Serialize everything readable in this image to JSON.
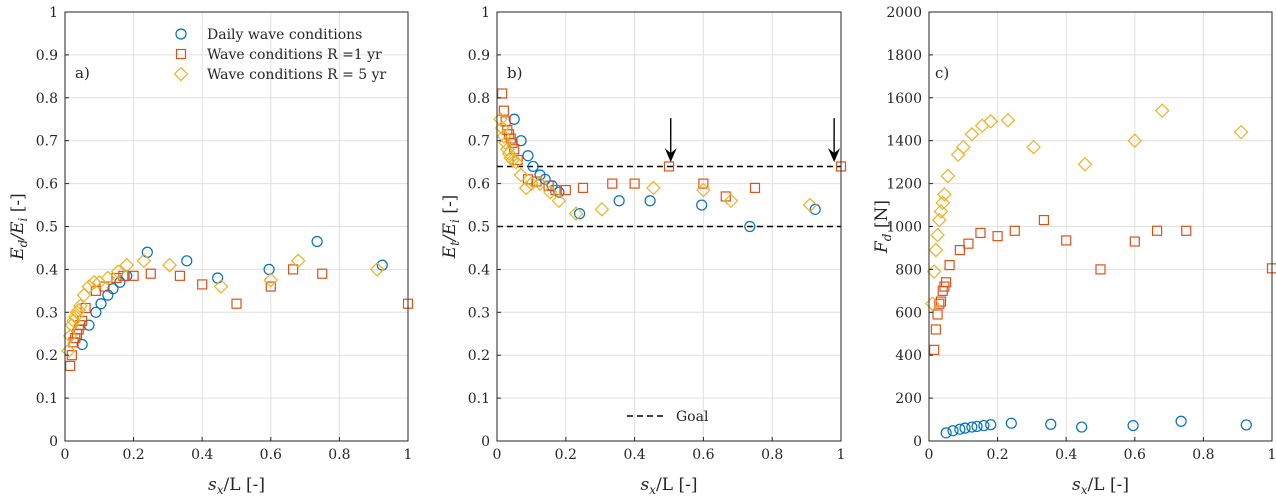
{
  "colors": {
    "daily": "#0072BD",
    "r1": "#D95319",
    "r5": "#EDB120",
    "axis": "#262626",
    "grid": "#e0e0e0"
  },
  "legend": {
    "daily": "Daily wave conditions",
    "r1": "Wave conditions R =1 yr",
    "r5": "Wave conditions R = 5 yr",
    "goal": "Goal"
  },
  "chart_data": [
    {
      "type": "scatter",
      "panel_label": "a)",
      "xlabel_main": "s",
      "xlabel_sub": "x",
      "xlabel_rest": "/L [-]",
      "ylabel_main": "E",
      "ylabel_sub": "d",
      "ylabel_mid": "/E",
      "ylabel_sub2": "i",
      "ylabel_rest": " [-]",
      "xlim": [
        0,
        1
      ],
      "ylim": [
        0,
        1
      ],
      "xticks": [
        "0",
        "0.2",
        "0.4",
        "0.6",
        "0.8",
        "1"
      ],
      "yticks": [
        "0",
        "0.1",
        "0.2",
        "0.3",
        "0.4",
        "0.5",
        "0.6",
        "0.7",
        "0.8",
        "0.9",
        "1"
      ],
      "grid": true,
      "legend_position": "top",
      "series": [
        {
          "key": "daily",
          "marker": "circle",
          "x": [
            0.05,
            0.07,
            0.09,
            0.105,
            0.125,
            0.14,
            0.16,
            0.18,
            0.24,
            0.355,
            0.445,
            0.595,
            0.735,
            0.925
          ],
          "y": [
            0.225,
            0.27,
            0.3,
            0.32,
            0.34,
            0.355,
            0.37,
            0.385,
            0.44,
            0.42,
            0.38,
            0.4,
            0.465,
            0.41
          ]
        },
        {
          "key": "r1",
          "marker": "square",
          "x": [
            0.015,
            0.02,
            0.025,
            0.03,
            0.035,
            0.04,
            0.045,
            0.05,
            0.06,
            0.09,
            0.115,
            0.15,
            0.17,
            0.2,
            0.25,
            0.335,
            0.4,
            0.5,
            0.6,
            0.665,
            0.75,
            1.0
          ],
          "y": [
            0.175,
            0.2,
            0.23,
            0.24,
            0.25,
            0.26,
            0.27,
            0.28,
            0.31,
            0.35,
            0.36,
            0.38,
            0.385,
            0.385,
            0.39,
            0.385,
            0.365,
            0.32,
            0.36,
            0.4,
            0.39,
            0.32
          ]
        },
        {
          "key": "r5",
          "marker": "diamond",
          "x": [
            0.01,
            0.015,
            0.02,
            0.025,
            0.03,
            0.035,
            0.04,
            0.045,
            0.055,
            0.07,
            0.085,
            0.1,
            0.125,
            0.155,
            0.18,
            0.23,
            0.305,
            0.455,
            0.6,
            0.68,
            0.91
          ],
          "y": [
            0.21,
            0.245,
            0.27,
            0.28,
            0.29,
            0.3,
            0.305,
            0.315,
            0.34,
            0.36,
            0.37,
            0.37,
            0.38,
            0.395,
            0.41,
            0.42,
            0.41,
            0.36,
            0.375,
            0.42,
            0.4
          ]
        }
      ]
    },
    {
      "type": "scatter",
      "panel_label": "b)",
      "xlabel_main": "s",
      "xlabel_sub": "x",
      "xlabel_rest": "/L [-]",
      "ylabel_main": "E",
      "ylabel_sub": "t",
      "ylabel_mid": "/E",
      "ylabel_sub2": "i",
      "ylabel_rest": " [-]",
      "xlim": [
        0,
        1
      ],
      "ylim": [
        0,
        1
      ],
      "xticks": [
        "0",
        "0.2",
        "0.4",
        "0.6",
        "0.8",
        "1"
      ],
      "yticks": [
        "0",
        "0.1",
        "0.2",
        "0.3",
        "0.4",
        "0.5",
        "0.6",
        "0.7",
        "0.8",
        "0.9",
        "1"
      ],
      "grid": true,
      "legend_position": "bottom",
      "goal_lines": [
        0.64,
        0.5
      ],
      "arrows_x": [
        0.505,
        0.98
      ],
      "series": [
        {
          "key": "daily",
          "marker": "circle",
          "x": [
            0.05,
            0.07,
            0.09,
            0.105,
            0.125,
            0.14,
            0.16,
            0.18,
            0.24,
            0.355,
            0.445,
            0.595,
            0.735,
            0.925
          ],
          "y": [
            0.75,
            0.7,
            0.665,
            0.64,
            0.62,
            0.61,
            0.595,
            0.58,
            0.53,
            0.56,
            0.56,
            0.55,
            0.5,
            0.54
          ]
        },
        {
          "key": "r1",
          "marker": "square",
          "x": [
            0.015,
            0.02,
            0.025,
            0.03,
            0.035,
            0.04,
            0.045,
            0.05,
            0.06,
            0.09,
            0.115,
            0.15,
            0.17,
            0.2,
            0.25,
            0.335,
            0.4,
            0.5,
            0.6,
            0.665,
            0.75,
            1.0
          ],
          "y": [
            0.81,
            0.77,
            0.745,
            0.725,
            0.715,
            0.705,
            0.695,
            0.68,
            0.655,
            0.61,
            0.605,
            0.595,
            0.585,
            0.585,
            0.59,
            0.6,
            0.6,
            0.64,
            0.6,
            0.57,
            0.59,
            0.64
          ]
        },
        {
          "key": "r5",
          "marker": "diamond",
          "x": [
            0.01,
            0.015,
            0.02,
            0.025,
            0.03,
            0.035,
            0.04,
            0.045,
            0.055,
            0.07,
            0.085,
            0.1,
            0.125,
            0.155,
            0.18,
            0.23,
            0.305,
            0.455,
            0.6,
            0.68,
            0.91
          ],
          "y": [
            0.75,
            0.73,
            0.71,
            0.695,
            0.68,
            0.67,
            0.66,
            0.655,
            0.65,
            0.62,
            0.59,
            0.6,
            0.6,
            0.58,
            0.56,
            0.53,
            0.54,
            0.59,
            0.585,
            0.56,
            0.55
          ]
        }
      ]
    },
    {
      "type": "scatter",
      "panel_label": "c)",
      "xlabel_main": "s",
      "xlabel_sub": "x",
      "xlabel_rest": "/L [-]",
      "ylabel_main": "F",
      "ylabel_sub": "d",
      "ylabel_mid": "",
      "ylabel_sub2": "",
      "ylabel_rest": " [N]",
      "xlim": [
        0,
        1
      ],
      "ylim": [
        0,
        2000
      ],
      "xticks": [
        "0",
        "0.2",
        "0.4",
        "0.6",
        "0.8",
        "1"
      ],
      "yticks": [
        "0",
        "200",
        "400",
        "600",
        "800",
        "1000",
        "1200",
        "1400",
        "1600",
        "1800",
        "2000"
      ],
      "grid": true,
      "series": [
        {
          "key": "daily",
          "marker": "circle",
          "x": [
            0.05,
            0.07,
            0.09,
            0.105,
            0.125,
            0.14,
            0.16,
            0.18,
            0.24,
            0.355,
            0.445,
            0.595,
            0.735,
            0.925
          ],
          "y": [
            38,
            48,
            55,
            60,
            65,
            68,
            72,
            76,
            83,
            78,
            65,
            72,
            92,
            75
          ]
        },
        {
          "key": "r1",
          "marker": "square",
          "x": [
            0.015,
            0.02,
            0.025,
            0.03,
            0.035,
            0.04,
            0.045,
            0.05,
            0.06,
            0.09,
            0.115,
            0.15,
            0.2,
            0.25,
            0.335,
            0.4,
            0.5,
            0.6,
            0.665,
            0.75,
            1.0
          ],
          "y": [
            425,
            520,
            590,
            640,
            650,
            700,
            720,
            740,
            820,
            890,
            920,
            970,
            955,
            980,
            1030,
            935,
            800,
            930,
            980,
            980,
            805
          ]
        },
        {
          "key": "r5",
          "marker": "diamond",
          "x": [
            0.01,
            0.015,
            0.02,
            0.025,
            0.03,
            0.035,
            0.04,
            0.045,
            0.055,
            0.085,
            0.1,
            0.125,
            0.155,
            0.18,
            0.23,
            0.305,
            0.455,
            0.6,
            0.68,
            0.91
          ],
          "y": [
            640,
            790,
            890,
            960,
            1030,
            1070,
            1110,
            1150,
            1235,
            1335,
            1370,
            1430,
            1470,
            1490,
            1495,
            1370,
            1290,
            1400,
            1540,
            1440
          ]
        }
      ]
    }
  ]
}
